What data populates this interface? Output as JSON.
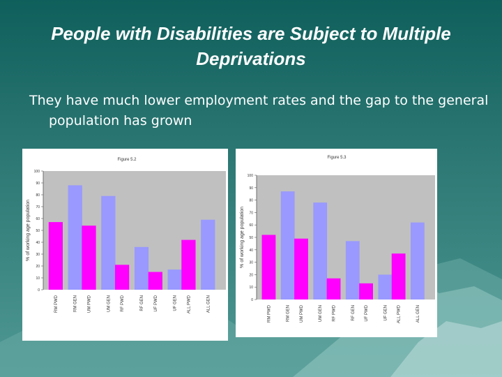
{
  "slide": {
    "title": "People with Disabilities are Subject to Multiple Deprivations",
    "body": "They have much lower employment rates and the gap to the general population has grown"
  },
  "colors": {
    "pwd_bar": "#ff00ff",
    "gen_bar": "#9999ff",
    "plot_bg": "#c0c0c0"
  },
  "chart_data": [
    {
      "type": "bar",
      "title": "Figure 5.2",
      "ylabel": "% of working age population",
      "ylim": [
        0,
        100
      ],
      "yticks": [
        "0",
        "10",
        "20",
        "30",
        "40",
        "50",
        "60",
        "70",
        "80",
        "90",
        "100"
      ],
      "categories": [
        "RM PWD",
        "RM GEN",
        "UM PWD",
        "UM GEN",
        "RF PWD",
        "RF GEN",
        "UF PWD",
        "UF GEN",
        "ALL PWD",
        "ALL GEN"
      ],
      "values": [
        57,
        88,
        54,
        79,
        21,
        36,
        15,
        17,
        42,
        59
      ],
      "groups": [
        {
          "pwd": 57,
          "gen": 88
        },
        {
          "pwd": 54,
          "gen": 79
        },
        {
          "pwd": 21,
          "gen": 36
        },
        {
          "pwd": 15,
          "gen": 17
        },
        {
          "pwd": 42,
          "gen": 59
        }
      ]
    },
    {
      "type": "bar",
      "title": "Figure 5.3",
      "ylabel": "% of working age population",
      "ylim": [
        0,
        100
      ],
      "yticks": [
        "0",
        "10",
        "20",
        "30",
        "40",
        "50",
        "60",
        "70",
        "80",
        "90",
        "100"
      ],
      "categories": [
        "RM PWD",
        "RM GEN",
        "UM PWD",
        "UM GEN",
        "RF PWD",
        "RF GEN",
        "UF PWD",
        "UF GEN",
        "ALL PWD",
        "ALL GEN"
      ],
      "values": [
        52,
        87,
        49,
        78,
        17,
        47,
        13,
        20,
        37,
        62
      ],
      "groups": [
        {
          "pwd": 52,
          "gen": 87
        },
        {
          "pwd": 49,
          "gen": 78
        },
        {
          "pwd": 17,
          "gen": 47
        },
        {
          "pwd": 13,
          "gen": 20
        },
        {
          "pwd": 37,
          "gen": 62
        }
      ]
    }
  ]
}
